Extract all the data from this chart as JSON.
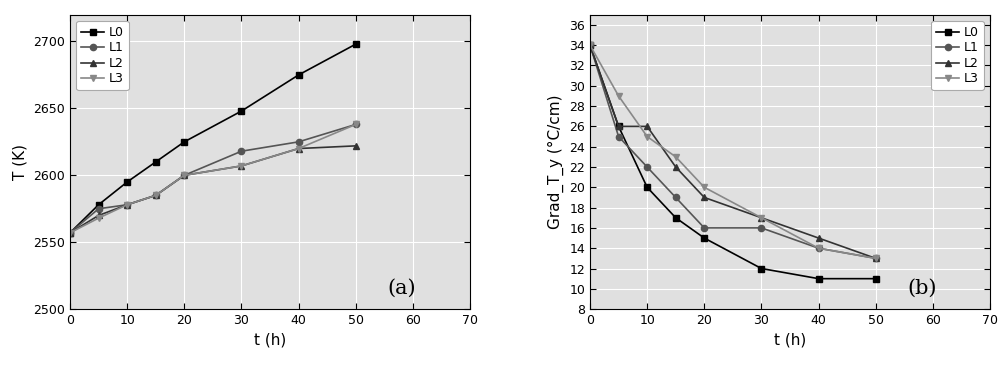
{
  "t_x": [
    0,
    5,
    10,
    15,
    20,
    30,
    40,
    50
  ],
  "chart_a": {
    "L0": [
      2557,
      2578,
      2595,
      2610,
      2625,
      2648,
      2675,
      2698
    ],
    "L1": [
      2557,
      2575,
      2578,
      2585,
      2600,
      2618,
      2625,
      2638
    ],
    "L2": [
      2557,
      2570,
      2578,
      2585,
      2600,
      2607,
      2620,
      2622
    ],
    "L3": [
      2557,
      2568,
      2578,
      2585,
      2600,
      2607,
      2620,
      2638
    ]
  },
  "chart_b": {
    "L0": [
      34,
      26,
      20,
      17,
      15,
      12,
      11,
      11
    ],
    "L1": [
      34,
      25,
      22,
      19,
      16,
      16,
      14,
      13
    ],
    "L2": [
      34,
      26,
      26,
      22,
      19,
      17,
      15,
      13
    ],
    "L3": [
      34,
      29,
      25,
      23,
      20,
      17,
      14,
      13
    ]
  },
  "xlabel": "t (h)",
  "ylabel_a": "T (K)",
  "ylabel_b": "Grad_T_y (°C/cm)",
  "label_a": "(a)",
  "label_b": "(b)",
  "xlim": [
    0,
    70
  ],
  "xticks": [
    0,
    10,
    20,
    30,
    40,
    50,
    60,
    70
  ],
  "ylim_a": [
    2500,
    2720
  ],
  "yticks_a": [
    2500,
    2550,
    2600,
    2650,
    2700
  ],
  "ylim_b": [
    8,
    37
  ],
  "yticks_b": [
    8,
    10,
    12,
    14,
    16,
    18,
    20,
    22,
    24,
    26,
    28,
    30,
    32,
    34,
    36
  ],
  "line_colors": {
    "L0": "#000000",
    "L1": "#555555",
    "L2": "#333333",
    "L3": "#888888"
  },
  "markers": {
    "L0": "s",
    "L1": "o",
    "L2": "^",
    "L3": "v"
  },
  "background_color": "#ffffff",
  "plot_bg_color": "#e0e0e0"
}
